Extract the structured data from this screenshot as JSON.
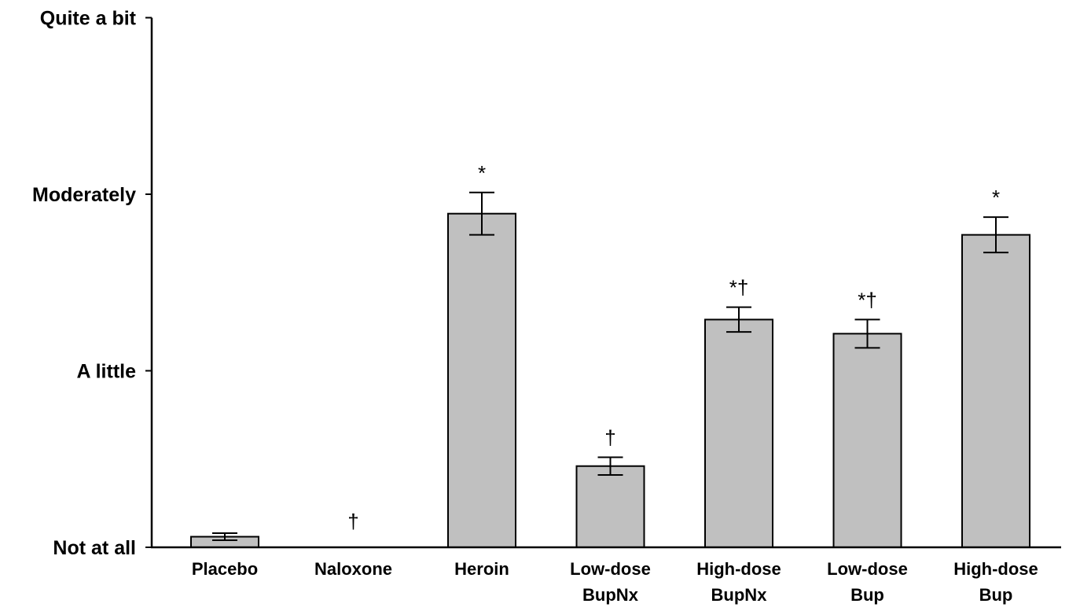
{
  "chart_data": {
    "type": "bar",
    "title": "",
    "xlabel": "",
    "ylabel": "",
    "ylim": [
      0,
      3
    ],
    "y_ticks": [
      {
        "value": 0,
        "label": "Not at all"
      },
      {
        "value": 1,
        "label": "A little"
      },
      {
        "value": 2,
        "label": "Moderately"
      },
      {
        "value": 3,
        "label": "Quite a bit"
      }
    ],
    "categories": [
      [
        "Placebo"
      ],
      [
        "Naloxone"
      ],
      [
        "Heroin"
      ],
      [
        "Low-dose",
        "BupNx"
      ],
      [
        "High-dose",
        "BupNx"
      ],
      [
        "Low-dose",
        "Bup"
      ],
      [
        "High-dose",
        "Bup"
      ]
    ],
    "values": [
      0.06,
      0.0,
      1.89,
      0.46,
      1.29,
      1.21,
      1.77
    ],
    "errors": [
      0.02,
      0.0,
      0.12,
      0.05,
      0.07,
      0.08,
      0.1
    ],
    "annotations": [
      "",
      "†",
      "*",
      "†",
      "*†",
      "*†",
      "*"
    ],
    "colors": {
      "bar_fill": "#c0c0c0",
      "bar_stroke": "#000000",
      "axis": "#000000"
    },
    "grid": false,
    "legend": "none"
  }
}
